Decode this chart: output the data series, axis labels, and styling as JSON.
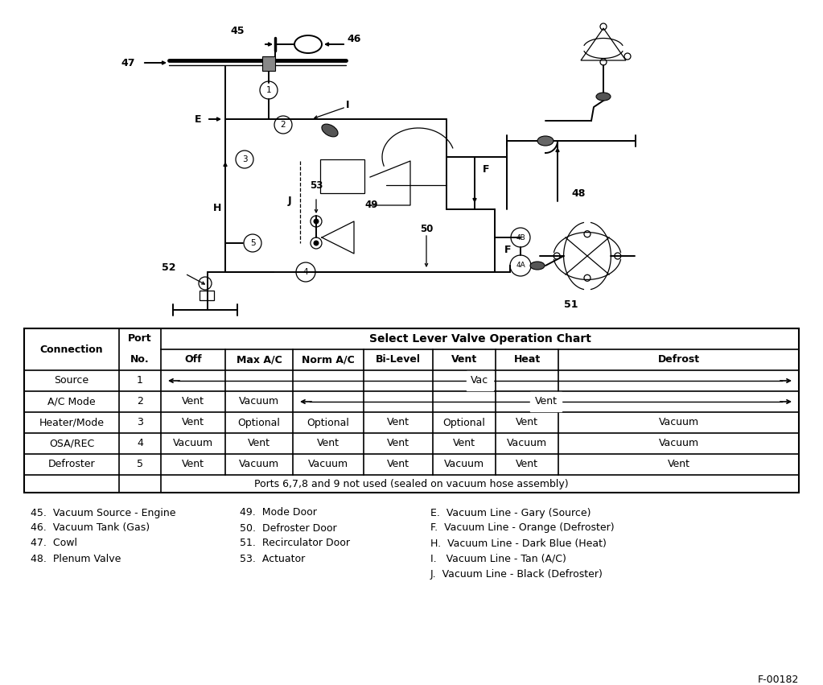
{
  "bg_color": "#ffffff",
  "table": {
    "footer": "Ports 6,7,8 and 9 not used (sealed on vacuum hose assembly)"
  },
  "legend_col1": [
    "45.  Vacuum Source - Engine",
    "46.  Vacuum Tank (Gas)",
    "47.  Cowl",
    "48.  Plenum Valve"
  ],
  "legend_col2": [
    "49.  Mode Door",
    "50.  Defroster Door",
    "51.  Recirculator Door",
    "53.  Actuator"
  ],
  "legend_col3": [
    "E.  Vacuum Line - Gary (Source)",
    "F.  Vacuum Line - Orange (Defroster)",
    "H.  Vacuum Line - Dark Blue (Heat)",
    "I.   Vacuum Line - Tan (A/C)",
    "J.  Vacuum Line - Black (Defroster)"
  ],
  "diagram_label": "F-00182",
  "col_headers": [
    "Off",
    "Max A/C",
    "Norm A/C",
    "Bi-Level",
    "Vent",
    "Heat",
    "Defrost"
  ],
  "data_rows": [
    [
      "Source",
      "1"
    ],
    [
      "A/C Mode",
      "2"
    ],
    [
      "Heater/Mode",
      "3"
    ],
    [
      "OSA/REC",
      "4"
    ],
    [
      "Defroster",
      "5"
    ]
  ],
  "data_cells": [
    [
      "",
      "",
      "",
      "",
      "",
      "",
      ""
    ],
    [
      "Vent",
      "Vacuum",
      "",
      "",
      "",
      "",
      ""
    ],
    [
      "Vent",
      "Optional",
      "Optional",
      "Vent",
      "Optional",
      "Vent",
      "Vacuum"
    ],
    [
      "Vacuum",
      "Vent",
      "Vent",
      "Vent",
      "Vent",
      "Vacuum",
      "Vacuum"
    ],
    [
      "Vent",
      "Vacuum",
      "Vacuum",
      "Vent",
      "Vacuum",
      "Vent",
      "Vent"
    ]
  ]
}
